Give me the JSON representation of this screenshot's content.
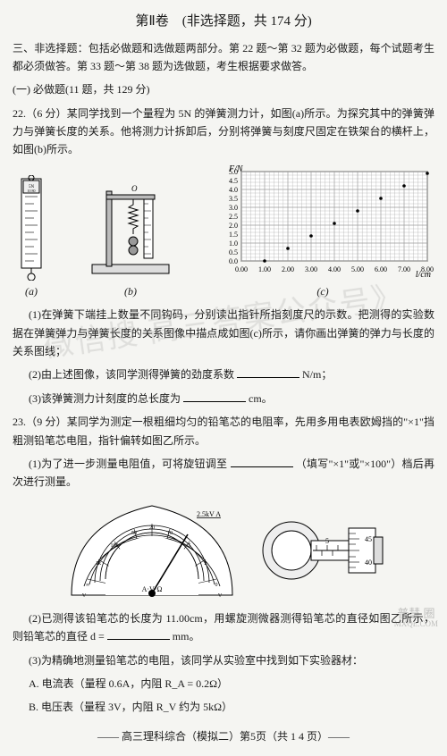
{
  "title": "第Ⅱ卷　(非选择题，共 174 分)",
  "section3": "三、非选择题：包括必做题和选做题两部分。第 22 题～第 32 题为必做题，每个试题考生都必须做答。第 33 题～第 38 题为选做题，考生根据要求做答。",
  "part1": "(一) 必做题(11 题，共 129 分)",
  "q22": {
    "stem": "22.（6 分）某同学找到一个量程为 5N 的弹簧测力计，如图(a)所示。为探究其中的弹簧弹力与弹簧长度的关系。他将测力计拆卸后，分别将弹簧与刻度尺固定在铁架台的横杆上，如图(b)所示。",
    "cap_a": "(a)",
    "cap_b": "(b)",
    "cap_c": "(c)",
    "p1": "(1)在弹簧下端挂上数量不同钩码，分别读出指针所指刻度尺的示数。把测得的实验数据在弹簧弹力与弹簧长度的关系图像中描点成如图(c)所示，请你画出弹簧的弹力与长度的关系图线；",
    "p2_a": "(2)由上述图像，该同学测得弹簧的劲度系数 ",
    "p2_b": "N/m；",
    "p3_a": "(3)该弹簧测力计刻度的总长度为 ",
    "p3_b": "cm。"
  },
  "chart": {
    "type": "scatter-grid",
    "x_label": "l/cm",
    "y_label": "F/N",
    "x_ticks": [
      "0.00",
      "1.00",
      "2.00",
      "3.00",
      "4.00",
      "5.00",
      "6.00",
      "7.00",
      "8.00"
    ],
    "y_ticks": [
      "0.0",
      "0.5",
      "1.0",
      "1.5",
      "2.0",
      "2.5",
      "3.0",
      "3.5",
      "4.0",
      "4.5",
      "5.0"
    ],
    "xlim": [
      0,
      8
    ],
    "ylim": [
      0,
      5
    ],
    "points": [
      [
        1.0,
        0.0
      ],
      [
        2.0,
        0.7
      ],
      [
        3.0,
        1.4
      ],
      [
        4.0,
        2.1
      ],
      [
        5.0,
        2.8
      ],
      [
        6.0,
        3.5
      ],
      [
        7.0,
        4.2
      ],
      [
        8.0,
        4.9
      ]
    ],
    "bg": "#ffffff",
    "grid_color": "#9a9a9a",
    "point_color": "#000000",
    "axis_color": "#000000",
    "label_fontsize": 10,
    "tick_fontsize": 8
  },
  "q23": {
    "stem": "23.（9 分）某同学为测定一根粗细均匀的铅笔芯的电阻率，先用多用电表欧姆挡的\"×1\"挡粗测铅笔芯电阻，指针偏转如图乙所示。",
    "p1_a": "(1)为了进一步测量电阻值，可将旋钮调至 ",
    "p1_b": "（填写\"×1\"或\"×100\"）档后再次进行测量。",
    "meter_label": "2.5kV A",
    "meter_sub": "A·V·Ω",
    "p2_a": "(2)已测得该铅笔芯的长度为 11.00cm，用螺旋测微器测得铅笔芯的直径如图乙所示，则铅笔芯的直径 d = ",
    "p2_b": " mm。",
    "p3": "(3)为精确地测量铅笔芯的电阻，该同学从实验室中找到如下实验器材：",
    "itemA": "A. 电流表（量程 0.6A，内阻 R_A = 0.2Ω）",
    "itemB": "B. 电压表（量程 3V，内阻 R_V 约为 5kΩ）"
  },
  "micrometer": {
    "main_mark": "5",
    "thimble_top": "45",
    "thimble_bot": "40"
  },
  "footer": "—— 高三理科综合（模拟二）第5页（共 1 4 页）——",
  "watermark": "微信搜 高三答案公众号》",
  "wm_br1": "普慧 圈",
  "wm_br2": "MXQE.COM"
}
